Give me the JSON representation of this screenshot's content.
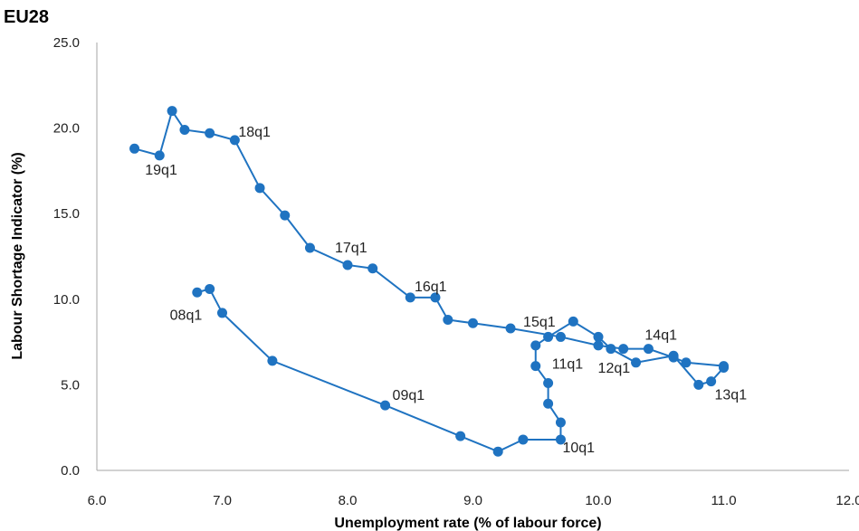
{
  "chart_data": {
    "type": "line",
    "title": "EU28",
    "xlabel": "Unemployment rate (% of labour force)",
    "ylabel": "Labour Shortage Indicator (%)",
    "xlim": [
      6.0,
      12.0
    ],
    "ylim": [
      0.0,
      25.0
    ],
    "x_ticks": [
      "6.0",
      "7.0",
      "8.0",
      "9.0",
      "10.0",
      "11.0",
      "12.0"
    ],
    "y_ticks": [
      "0.0",
      "5.0",
      "10.0",
      "15.0",
      "20.0",
      "25.0"
    ],
    "grid": false,
    "color": "#1f73c1",
    "series": [
      {
        "points": [
          {
            "x": 6.8,
            "y": 10.4,
            "label": ""
          },
          {
            "x": 6.9,
            "y": 10.6,
            "label": "08q1"
          },
          {
            "x": 7.0,
            "y": 9.2,
            "label": ""
          },
          {
            "x": 7.4,
            "y": 6.4,
            "label": ""
          },
          {
            "x": 8.3,
            "y": 3.8,
            "label": "09q1"
          },
          {
            "x": 8.9,
            "y": 2.0,
            "label": ""
          },
          {
            "x": 9.2,
            "y": 1.1,
            "label": ""
          },
          {
            "x": 9.4,
            "y": 1.8,
            "label": ""
          },
          {
            "x": 9.7,
            "y": 1.8,
            "label": "10q1"
          },
          {
            "x": 9.7,
            "y": 2.8,
            "label": ""
          },
          {
            "x": 9.6,
            "y": 3.9,
            "label": ""
          },
          {
            "x": 9.6,
            "y": 5.1,
            "label": ""
          },
          {
            "x": 9.5,
            "y": 6.1,
            "label": "11q1"
          },
          {
            "x": 9.5,
            "y": 7.3,
            "label": ""
          },
          {
            "x": 9.6,
            "y": 7.8,
            "label": ""
          },
          {
            "x": 9.8,
            "y": 8.7,
            "label": ""
          },
          {
            "x": 10.0,
            "y": 7.8,
            "label": ""
          },
          {
            "x": 10.1,
            "y": 7.1,
            "label": ""
          },
          {
            "x": 10.3,
            "y": 6.3,
            "label": "12q1"
          },
          {
            "x": 10.6,
            "y": 6.7,
            "label": ""
          },
          {
            "x": 10.8,
            "y": 5.0,
            "label": ""
          },
          {
            "x": 10.9,
            "y": 5.2,
            "label": ""
          },
          {
            "x": 11.0,
            "y": 6.0,
            "label": "13q1"
          },
          {
            "x": 11.0,
            "y": 6.1,
            "label": ""
          },
          {
            "x": 10.7,
            "y": 6.3,
            "label": ""
          },
          {
            "x": 10.6,
            "y": 6.6,
            "label": ""
          },
          {
            "x": 10.4,
            "y": 7.1,
            "label": "14q1"
          },
          {
            "x": 10.2,
            "y": 7.1,
            "label": ""
          },
          {
            "x": 10.0,
            "y": 7.3,
            "label": ""
          },
          {
            "x": 9.7,
            "y": 7.8,
            "label": ""
          },
          {
            "x": 9.3,
            "y": 8.3,
            "label": "15q1"
          },
          {
            "x": 9.0,
            "y": 8.6,
            "label": ""
          },
          {
            "x": 8.8,
            "y": 8.8,
            "label": ""
          },
          {
            "x": 8.7,
            "y": 10.1,
            "label": "16q1"
          },
          {
            "x": 8.5,
            "y": 10.1,
            "label": ""
          },
          {
            "x": 8.2,
            "y": 11.8,
            "label": ""
          },
          {
            "x": 8.0,
            "y": 12.0,
            "label": "17q1"
          },
          {
            "x": 7.7,
            "y": 13.0,
            "label": ""
          },
          {
            "x": 7.5,
            "y": 14.9,
            "label": ""
          },
          {
            "x": 7.3,
            "y": 16.5,
            "label": ""
          },
          {
            "x": 7.1,
            "y": 19.3,
            "label": "18q1"
          },
          {
            "x": 6.9,
            "y": 19.7,
            "label": ""
          },
          {
            "x": 6.7,
            "y": 19.9,
            "label": ""
          },
          {
            "x": 6.6,
            "y": 21.0,
            "label": ""
          },
          {
            "x": 6.5,
            "y": 18.4,
            "label": "19q1"
          },
          {
            "x": 6.3,
            "y": 18.8,
            "label": ""
          }
        ]
      }
    ]
  }
}
